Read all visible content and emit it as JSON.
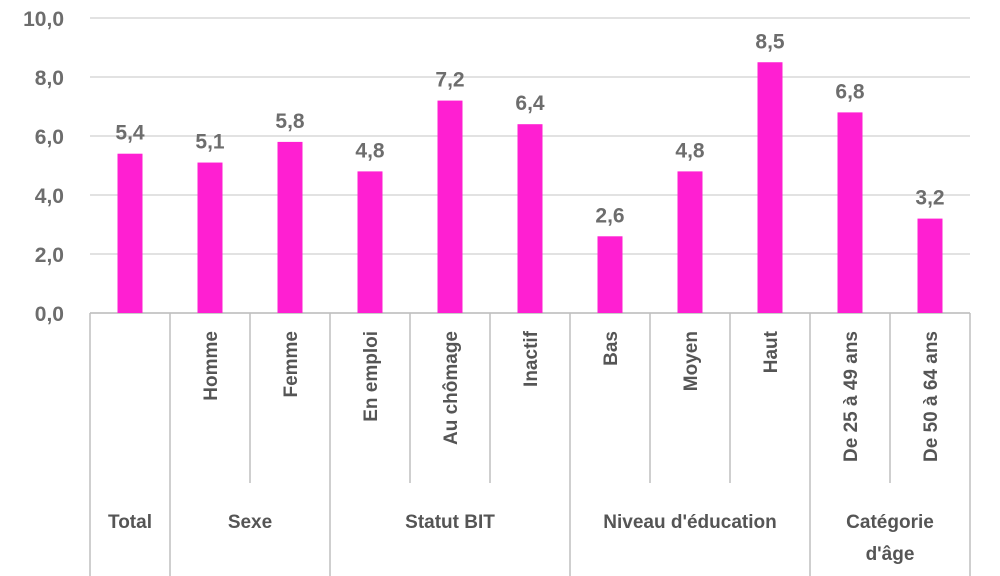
{
  "colors": {
    "bar": "#ff1fd2",
    "grid": "#d9d9d9",
    "text": "#6d6d6d",
    "axis": "#bfbfbf"
  },
  "chart_data": {
    "type": "bar",
    "categories": [
      "",
      "Homme",
      "Femme",
      "En emploi",
      "Au chômage",
      "Inactif",
      "Bas",
      "Moyen",
      "Haut",
      "De 25 à 49 ans",
      "De 50 à 64 ans"
    ],
    "values": [
      5.4,
      5.1,
      5.8,
      4.8,
      7.2,
      6.4,
      2.6,
      4.8,
      8.5,
      6.8,
      3.2
    ],
    "data_labels": [
      "5,4",
      "5,1",
      "5,8",
      "4,8",
      "7,2",
      "6,4",
      "2,6",
      "4,8",
      "8,5",
      "6,8",
      "3,2"
    ],
    "groups": [
      {
        "label": "Total",
        "lines": [
          "Total"
        ],
        "start": 0,
        "end": 0
      },
      {
        "label": "Sexe",
        "lines": [
          "Sexe"
        ],
        "start": 1,
        "end": 2
      },
      {
        "label": "Statut BIT",
        "lines": [
          "Statut BIT"
        ],
        "start": 3,
        "end": 5
      },
      {
        "label": "Niveau d'éducation",
        "lines": [
          "Niveau d'éducation"
        ],
        "start": 6,
        "end": 8
      },
      {
        "label": "Catégorie d'âge",
        "lines": [
          "Catégorie",
          "d'âge"
        ],
        "start": 9,
        "end": 10
      }
    ],
    "yticks": [
      "0,0",
      "2,0",
      "4,0",
      "6,0",
      "8,0",
      "10,0"
    ],
    "ylim": [
      0,
      10
    ],
    "grid": true,
    "title": "",
    "xlabel": "",
    "ylabel": ""
  }
}
